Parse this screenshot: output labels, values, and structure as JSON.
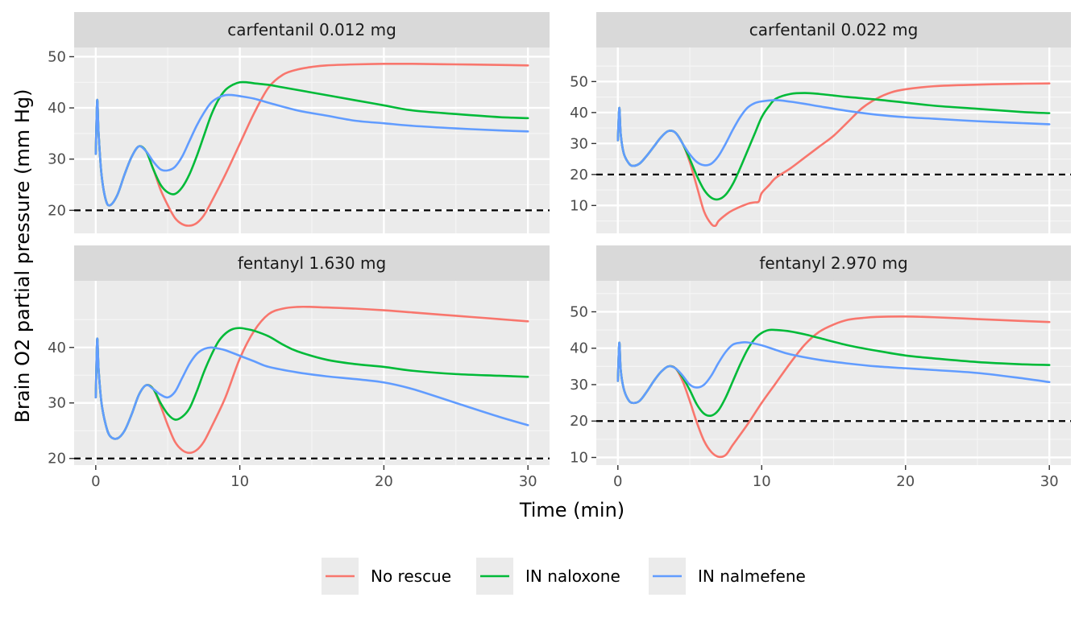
{
  "chart_data": {
    "type": "line",
    "xlabel": "Time (min)",
    "ylabel": "Brain O2 partial pressure (mm Hg)",
    "x_ticks": [
      0,
      10,
      20,
      30
    ],
    "xlim": [
      -1.5,
      31.5
    ],
    "threshold_line": {
      "y": 20,
      "style": "dashed",
      "color": "#000000"
    },
    "grid": true,
    "legend": {
      "position": "bottom",
      "entries": [
        {
          "name": "No rescue",
          "color": "#F8766D"
        },
        {
          "name": "IN naloxone",
          "color": "#00BA38"
        },
        {
          "name": "IN nalmefene",
          "color": "#619CFF"
        }
      ]
    },
    "panels": [
      {
        "title": "carfentanil 0.012 mg",
        "ylim": [
          15.5,
          51.8
        ],
        "y_ticks": [
          20,
          30,
          40,
          50
        ],
        "series": [
          {
            "name": "No rescue",
            "x": [
              0,
              0.1,
              0.2,
              0.4,
              0.7,
              1,
              1.5,
              2,
              2.5,
              3,
              3.5,
              4,
              4.5,
              5,
              5.5,
              6,
              6.5,
              7,
              7.5,
              8,
              9,
              10,
              11,
              12,
              13,
              14,
              15,
              16,
              18,
              20,
              22,
              25,
              28,
              30
            ],
            "y": [
              31,
              41.5,
              35,
              27,
              22,
              21,
              23,
              27,
              30.5,
              32.5,
              31.5,
              28,
              24,
              21,
              18.5,
              17.3,
              17,
              17.5,
              19,
              21.5,
              27,
              33,
              39,
              44,
              46.5,
              47.5,
              48,
              48.3,
              48.5,
              48.6,
              48.6,
              48.5,
              48.4,
              48.3
            ]
          },
          {
            "name": "IN naloxone",
            "x": [
              0,
              0.1,
              0.2,
              0.4,
              0.7,
              1,
              1.5,
              2,
              2.5,
              3,
              3.5,
              4,
              4.5,
              5,
              5.5,
              6,
              6.5,
              7,
              7.5,
              8,
              8.5,
              9,
              9.5,
              10,
              10.5,
              11,
              12,
              13,
              15,
              18,
              20,
              22,
              25,
              28,
              30
            ],
            "y": [
              31,
              41.5,
              35,
              27,
              22,
              21,
              23,
              27,
              30.5,
              32.5,
              31.5,
              28,
              25,
              23.5,
              23.2,
              24.5,
              27,
              30.5,
              34.5,
              38.5,
              41.5,
              43.5,
              44.5,
              45,
              45,
              44.8,
              44.5,
              44,
              43,
              41.5,
              40.5,
              39.5,
              38.8,
              38.2,
              38
            ]
          },
          {
            "name": "IN nalmefene",
            "x": [
              0,
              0.1,
              0.2,
              0.4,
              0.7,
              1,
              1.5,
              2,
              2.5,
              3,
              3.5,
              4,
              4.5,
              5,
              5.5,
              6,
              6.5,
              7,
              7.5,
              8,
              8.5,
              9,
              9.5,
              10,
              11,
              12,
              14,
              16,
              18,
              20,
              22,
              25,
              28,
              30
            ],
            "y": [
              31,
              41.5,
              35,
              27,
              22,
              21,
              23,
              27,
              30.5,
              32.5,
              31.5,
              29.5,
              28,
              27.8,
              28.5,
              30.5,
              33.5,
              36.5,
              39,
              41,
              42,
              42.5,
              42.5,
              42.3,
              41.8,
              41,
              39.5,
              38.5,
              37.5,
              37,
              36.5,
              36,
              35.6,
              35.4
            ]
          }
        ]
      },
      {
        "title": "carfentanil 0.022 mg",
        "ylim": [
          1,
          61
        ],
        "y_ticks": [
          10,
          20,
          30,
          40,
          50
        ],
        "series": [
          {
            "name": "No rescue",
            "x": [
              0,
              0.1,
              0.2,
              0.4,
              0.7,
              1,
              1.5,
              2,
              2.5,
              3,
              3.5,
              4,
              4.5,
              5,
              5.5,
              6,
              6.5,
              6.8,
              7,
              7.5,
              8,
              9,
              9.5,
              9.8,
              10,
              10.5,
              11,
              12,
              13,
              14,
              15,
              16,
              17,
              18,
              19,
              20,
              22,
              25,
              28,
              30
            ],
            "y": [
              31,
              41.5,
              33,
              27,
              24,
              22.8,
              23.5,
              26,
              29,
              32,
              34,
              33.5,
              30,
              24,
              16,
              8,
              4,
              3.5,
              5,
              7,
              8.5,
              10.5,
              11,
              11.3,
              14,
              16.5,
              19,
              22,
              25.5,
              29,
              32.5,
              37,
              41.5,
              44.5,
              46.5,
              47.5,
              48.5,
              49,
              49.3,
              49.4
            ]
          },
          {
            "name": "IN naloxone",
            "x": [
              0,
              0.1,
              0.2,
              0.4,
              0.7,
              1,
              1.5,
              2,
              2.5,
              3,
              3.5,
              4,
              4.5,
              5,
              5.5,
              6,
              6.5,
              7,
              7.5,
              8,
              8.5,
              9,
              9.5,
              10,
              10.5,
              11,
              12,
              13,
              14,
              15,
              16,
              18,
              20,
              22,
              25,
              28,
              30
            ],
            "y": [
              31,
              41.5,
              33,
              27,
              24,
              22.8,
              23.5,
              26,
              29,
              32,
              34,
              33.5,
              30,
              25,
              19.5,
              15,
              12.5,
              12,
              13.5,
              17,
              22,
              27.5,
              33,
              38.5,
              42,
              44.5,
              46,
              46.3,
              46,
              45.5,
              45,
              44.2,
              43.2,
              42.2,
              41.2,
              40.2,
              39.8
            ]
          },
          {
            "name": "IN nalmefene",
            "x": [
              0,
              0.1,
              0.2,
              0.4,
              0.7,
              1,
              1.5,
              2,
              2.5,
              3,
              3.5,
              4,
              4.5,
              5,
              5.5,
              6,
              6.5,
              7,
              7.5,
              8,
              8.5,
              9,
              9.5,
              10,
              11,
              12,
              13,
              14,
              16,
              18,
              20,
              22,
              25,
              28,
              30
            ],
            "y": [
              31,
              41.5,
              33,
              27,
              24,
              22.8,
              23.5,
              26,
              29,
              32,
              34,
              33.5,
              30,
              26.5,
              24,
              23,
              23.5,
              26,
              30,
              34.5,
              38.5,
              41.5,
              43,
              43.6,
              44,
              43.5,
              42.8,
              42,
              40.5,
              39.3,
              38.5,
              38,
              37.2,
              36.6,
              36.2
            ]
          }
        ]
      },
      {
        "title": "fentanyl 1.630 mg",
        "ylim": [
          18.8,
          52
        ],
        "y_ticks": [
          20,
          30,
          40
        ],
        "series": [
          {
            "name": "No rescue",
            "x": [
              0,
              0.1,
              0.2,
              0.4,
              0.7,
              1,
              1.5,
              2,
              2.5,
              3,
              3.5,
              4,
              4.5,
              5,
              5.5,
              6,
              6.5,
              7,
              7.5,
              8,
              9,
              10,
              11,
              12,
              13,
              14,
              15,
              16,
              18,
              20,
              22,
              25,
              28,
              30
            ],
            "y": [
              31,
              41.5,
              36,
              30,
              26,
              24,
              23.6,
              25,
              28,
              31.5,
              33.2,
              32.5,
              29.5,
              26,
              23,
              21.5,
              21,
              21.5,
              23,
              25.5,
              31,
              38,
              43,
              46,
              47,
              47.3,
              47.3,
              47.2,
              47,
              46.7,
              46.3,
              45.7,
              45.1,
              44.7
            ]
          },
          {
            "name": "IN naloxone",
            "x": [
              0,
              0.1,
              0.2,
              0.4,
              0.7,
              1,
              1.5,
              2,
              2.5,
              3,
              3.5,
              4,
              4.5,
              5,
              5.5,
              6,
              6.5,
              7,
              7.5,
              8,
              8.5,
              9,
              9.5,
              10,
              10.5,
              11,
              12,
              13,
              14,
              16,
              18,
              20,
              22,
              25,
              28,
              30
            ],
            "y": [
              31,
              41.5,
              36,
              30,
              26,
              24,
              23.6,
              25,
              28,
              31.5,
              33.2,
              32.5,
              30,
              28,
              27,
              27.5,
              29,
              32,
              35.5,
              38.5,
              41,
              42.5,
              43.3,
              43.5,
              43.3,
              43,
              42,
              40.5,
              39.3,
              37.8,
              37,
              36.5,
              35.8,
              35.2,
              34.9,
              34.7
            ]
          },
          {
            "name": "IN nalmefene",
            "x": [
              0,
              0.1,
              0.2,
              0.4,
              0.7,
              1,
              1.5,
              2,
              2.5,
              3,
              3.5,
              4,
              4.5,
              5,
              5.5,
              6,
              6.5,
              7,
              7.5,
              8,
              8.5,
              9,
              10,
              11,
              12,
              14,
              16,
              18,
              20,
              22,
              25,
              28,
              30
            ],
            "y": [
              31,
              41.5,
              36,
              30,
              26,
              24,
              23.6,
              25,
              28,
              31.5,
              33.2,
              32.5,
              31.5,
              31,
              32,
              34.5,
              37,
              38.8,
              39.7,
              40,
              39.8,
              39.5,
              38.5,
              37.5,
              36.5,
              35.5,
              34.8,
              34.3,
              33.7,
              32.5,
              30,
              27.5,
              26
            ]
          }
        ]
      },
      {
        "title": "fentanyl 2.970 mg",
        "ylim": [
          7.9,
          58.5
        ],
        "y_ticks": [
          10,
          20,
          30,
          40,
          50
        ],
        "series": [
          {
            "name": "No rescue",
            "x": [
              0,
              0.1,
              0.2,
              0.4,
              0.7,
              1,
              1.5,
              2,
              2.5,
              3,
              3.5,
              4,
              4.5,
              5,
              5.5,
              6,
              6.5,
              7,
              7.5,
              8,
              9,
              10,
              11,
              12,
              13,
              14,
              15,
              16,
              17,
              18,
              20,
              22,
              25,
              28,
              30
            ],
            "y": [
              31,
              41.5,
              34,
              29,
              26,
              25,
              25.5,
              28,
              31,
              33.5,
              35,
              34.5,
              31,
              25.5,
              19.5,
              14.5,
              11.5,
              10.2,
              10.7,
              13.5,
              19,
              25,
              30.5,
              36,
              41,
              44.5,
              46.5,
              47.8,
              48.3,
              48.6,
              48.7,
              48.5,
              48,
              47.5,
              47.2
            ]
          },
          {
            "name": "IN naloxone",
            "x": [
              0,
              0.1,
              0.2,
              0.4,
              0.7,
              1,
              1.5,
              2,
              2.5,
              3,
              3.5,
              4,
              4.5,
              5,
              5.5,
              6,
              6.5,
              7,
              7.5,
              8,
              8.5,
              9,
              9.5,
              10,
              10.5,
              11,
              12,
              13,
              14,
              16,
              18,
              20,
              22,
              25,
              28,
              30
            ],
            "y": [
              31,
              41.5,
              34,
              29,
              26,
              25,
              25.5,
              28,
              31,
              33.5,
              35,
              34.5,
              32,
              28.5,
              24.5,
              22,
              21.5,
              23,
              26.5,
              31,
              35.5,
              39.5,
              42.5,
              44.2,
              45,
              45,
              44.6,
              43.8,
              42.8,
              40.8,
              39.3,
              38,
              37.2,
              36.2,
              35.6,
              35.4
            ]
          },
          {
            "name": "IN nalmefene",
            "x": [
              0,
              0.1,
              0.2,
              0.4,
              0.7,
              1,
              1.5,
              2,
              2.5,
              3,
              3.5,
              4,
              4.5,
              5,
              5.5,
              6,
              6.5,
              7,
              7.5,
              8,
              8.5,
              9,
              10,
              11,
              12,
              14,
              16,
              18,
              20,
              22,
              25,
              28,
              30
            ],
            "y": [
              31,
              41.5,
              34,
              29,
              26,
              25,
              25.5,
              28,
              31,
              33.5,
              35,
              34.5,
              32.5,
              30,
              29.2,
              30,
              32.5,
              36,
              39,
              41,
              41.5,
              41.6,
              40.8,
              39.5,
              38.3,
              36.8,
              35.8,
              35,
              34.5,
              34,
              33.2,
              31.8,
              30.7
            ]
          }
        ]
      }
    ]
  }
}
